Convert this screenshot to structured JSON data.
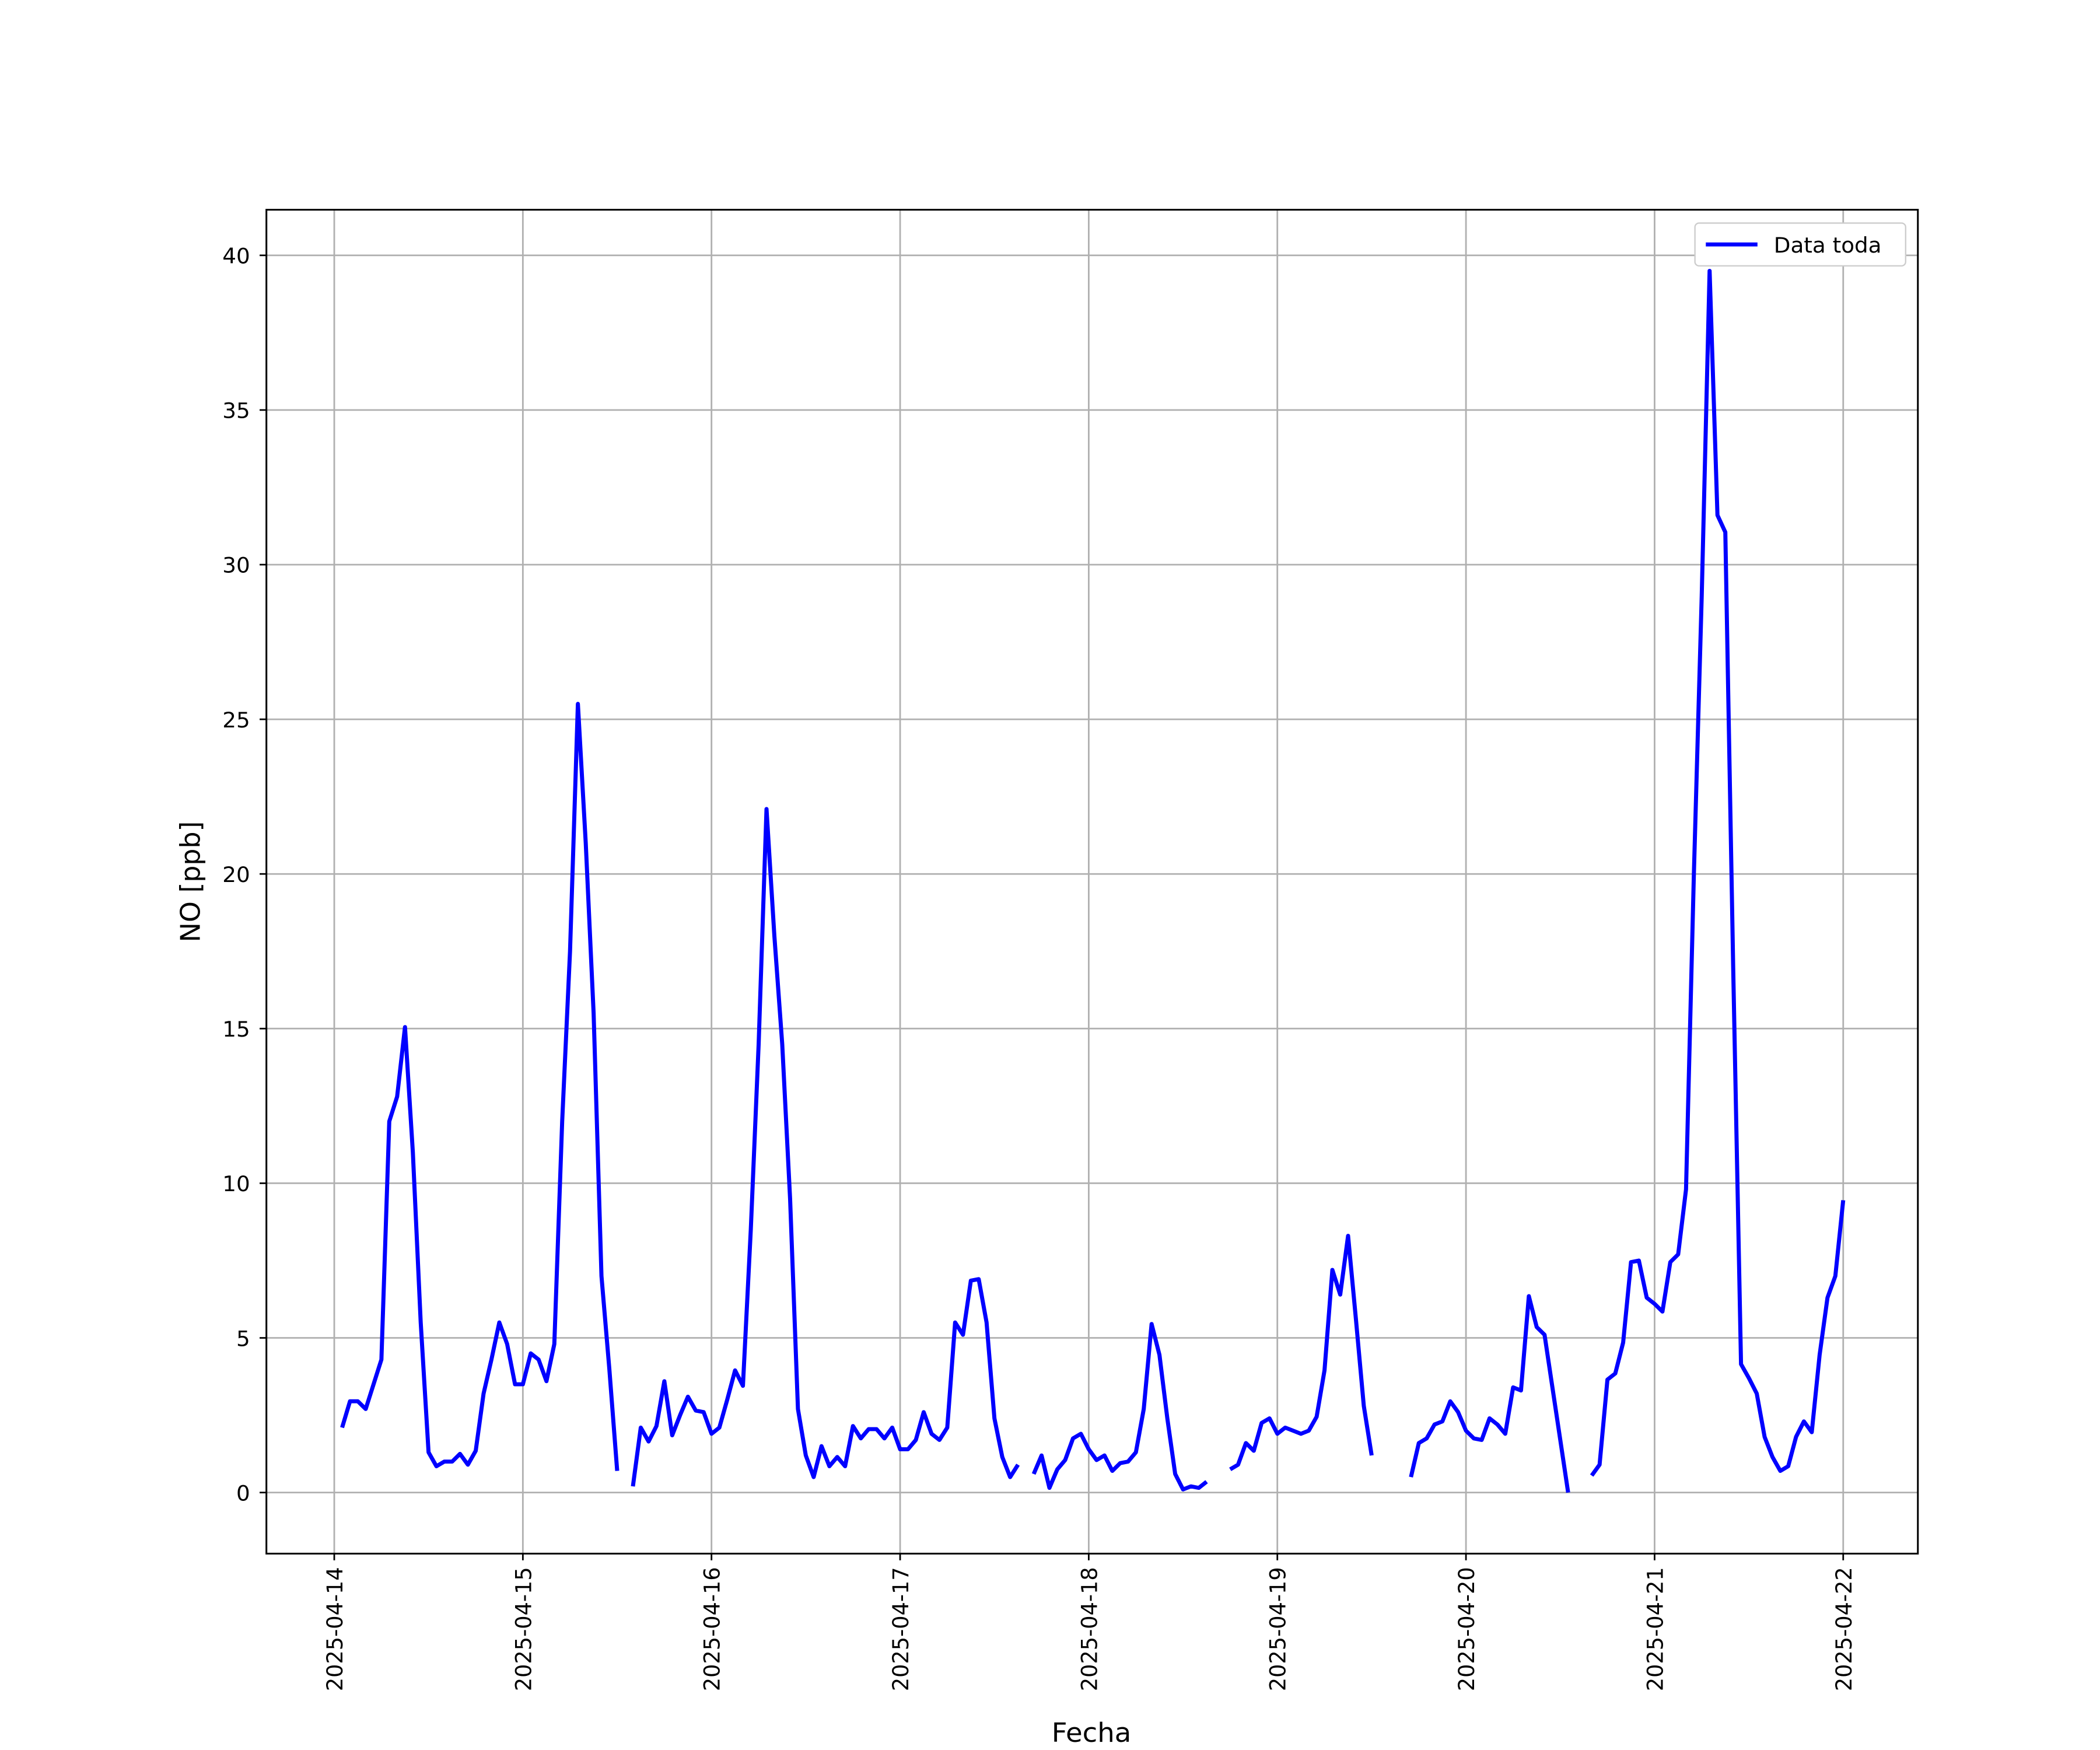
{
  "chart_data": {
    "type": "line",
    "xlabel": "Fecha",
    "ylabel": "NO [ppb]",
    "x": [
      "2025-04-14 01:00",
      "2025-04-14 02:00",
      "2025-04-14 03:00",
      "2025-04-14 04:00",
      "2025-04-14 05:00",
      "2025-04-14 06:00",
      "2025-04-14 07:00",
      "2025-04-14 08:00",
      "2025-04-14 09:00",
      "2025-04-14 10:00",
      "2025-04-14 11:00",
      "2025-04-14 12:00",
      "2025-04-14 13:00",
      "2025-04-14 14:00",
      "2025-04-14 15:00",
      "2025-04-14 16:00",
      "2025-04-14 17:00",
      "2025-04-14 18:00",
      "2025-04-14 19:00",
      "2025-04-14 20:00",
      "2025-04-14 21:00",
      "2025-04-14 22:00",
      "2025-04-14 23:00",
      "2025-04-15 00:00",
      "2025-04-15 01:00",
      "2025-04-15 02:00",
      "2025-04-15 03:00",
      "2025-04-15 04:00",
      "2025-04-15 05:00",
      "2025-04-15 06:00",
      "2025-04-15 07:00",
      "2025-04-15 08:00",
      "2025-04-15 09:00",
      "2025-04-15 10:00",
      "2025-04-15 11:00",
      "2025-04-15 12:00",
      "2025-04-15 13:00",
      "2025-04-15 14:00",
      "2025-04-15 15:00",
      "2025-04-15 16:00",
      "2025-04-15 17:00",
      "2025-04-15 18:00",
      "2025-04-15 19:00",
      "2025-04-15 20:00",
      "2025-04-15 21:00",
      "2025-04-15 22:00",
      "2025-04-15 23:00",
      "2025-04-16 00:00",
      "2025-04-16 01:00",
      "2025-04-16 02:00",
      "2025-04-16 03:00",
      "2025-04-16 04:00",
      "2025-04-16 05:00",
      "2025-04-16 06:00",
      "2025-04-16 07:00",
      "2025-04-16 08:00",
      "2025-04-16 09:00",
      "2025-04-16 10:00",
      "2025-04-16 11:00",
      "2025-04-16 12:00",
      "2025-04-16 13:00",
      "2025-04-16 14:00",
      "2025-04-16 15:00",
      "2025-04-16 16:00",
      "2025-04-16 17:00",
      "2025-04-16 18:00",
      "2025-04-16 19:00",
      "2025-04-16 20:00",
      "2025-04-16 21:00",
      "2025-04-16 22:00",
      "2025-04-16 23:00",
      "2025-04-17 00:00",
      "2025-04-17 01:00",
      "2025-04-17 02:00",
      "2025-04-17 03:00",
      "2025-04-17 04:00",
      "2025-04-17 05:00",
      "2025-04-17 06:00",
      "2025-04-17 07:00",
      "2025-04-17 08:00",
      "2025-04-17 09:00",
      "2025-04-17 10:00",
      "2025-04-17 11:00",
      "2025-04-17 12:00",
      "2025-04-17 13:00",
      "2025-04-17 14:00",
      "2025-04-17 15:00",
      "2025-04-17 16:00",
      "2025-04-17 17:00",
      "2025-04-17 18:00",
      "2025-04-17 19:00",
      "2025-04-17 20:00",
      "2025-04-17 21:00",
      "2025-04-17 22:00",
      "2025-04-17 23:00",
      "2025-04-18 00:00",
      "2025-04-18 01:00",
      "2025-04-18 02:00",
      "2025-04-18 03:00",
      "2025-04-18 04:00",
      "2025-04-18 05:00",
      "2025-04-18 06:00",
      "2025-04-18 07:00",
      "2025-04-18 08:00",
      "2025-04-18 09:00",
      "2025-04-18 10:00",
      "2025-04-18 11:00",
      "2025-04-18 12:00",
      "2025-04-18 13:00",
      "2025-04-18 14:00",
      "2025-04-18 15:00",
      "2025-04-18 16:00",
      "2025-04-18 17:00",
      "2025-04-18 18:00",
      "2025-04-18 19:00",
      "2025-04-18 20:00",
      "2025-04-18 21:00",
      "2025-04-18 22:00",
      "2025-04-18 23:00",
      "2025-04-19 00:00",
      "2025-04-19 01:00",
      "2025-04-19 02:00",
      "2025-04-19 03:00",
      "2025-04-19 04:00",
      "2025-04-19 05:00",
      "2025-04-19 06:00",
      "2025-04-19 07:00",
      "2025-04-19 08:00",
      "2025-04-19 09:00",
      "2025-04-19 10:00",
      "2025-04-19 11:00",
      "2025-04-19 12:00",
      "2025-04-19 13:00",
      "2025-04-19 14:00",
      "2025-04-19 15:00",
      "2025-04-19 16:00",
      "2025-04-19 17:00",
      "2025-04-19 18:00",
      "2025-04-19 19:00",
      "2025-04-19 20:00",
      "2025-04-19 21:00",
      "2025-04-19 22:00",
      "2025-04-19 23:00",
      "2025-04-20 00:00",
      "2025-04-20 01:00",
      "2025-04-20 02:00",
      "2025-04-20 03:00",
      "2025-04-20 04:00",
      "2025-04-20 05:00",
      "2025-04-20 06:00",
      "2025-04-20 07:00",
      "2025-04-20 08:00",
      "2025-04-20 09:00",
      "2025-04-20 10:00",
      "2025-04-20 11:00",
      "2025-04-20 12:00",
      "2025-04-20 13:00",
      "2025-04-20 14:00",
      "2025-04-20 15:00",
      "2025-04-20 16:00",
      "2025-04-20 17:00",
      "2025-04-20 18:00",
      "2025-04-20 19:00",
      "2025-04-20 20:00",
      "2025-04-20 21:00",
      "2025-04-20 22:00",
      "2025-04-20 23:00",
      "2025-04-21 00:00",
      "2025-04-21 01:00",
      "2025-04-21 02:00",
      "2025-04-21 03:00",
      "2025-04-21 04:00",
      "2025-04-21 05:00",
      "2025-04-21 06:00",
      "2025-04-21 07:00",
      "2025-04-21 08:00",
      "2025-04-21 09:00",
      "2025-04-21 10:00",
      "2025-04-21 11:00",
      "2025-04-21 12:00",
      "2025-04-21 13:00",
      "2025-04-21 14:00",
      "2025-04-21 15:00",
      "2025-04-21 16:00",
      "2025-04-21 17:00",
      "2025-04-21 18:00",
      "2025-04-21 19:00",
      "2025-04-21 20:00",
      "2025-04-21 21:00",
      "2025-04-21 22:00",
      "2025-04-21 23:00",
      "2025-04-22 00:00"
    ],
    "series": [
      {
        "name": "Data toda",
        "color": "#0000ff",
        "values": [
          2.1,
          2.95,
          2.95,
          2.7,
          3.5,
          4.3,
          12.0,
          12.8,
          15.05,
          11.0,
          5.5,
          1.3,
          0.85,
          1.0,
          1.0,
          1.25,
          0.9,
          1.35,
          3.2,
          4.3,
          5.5,
          4.8,
          3.5,
          3.5,
          4.5,
          4.3,
          3.6,
          4.8,
          12.0,
          17.5,
          25.5,
          21.0,
          15.5,
          7.0,
          4.0,
          0.7,
          null,
          0.2,
          2.1,
          1.65,
          2.15,
          3.6,
          1.85,
          2.5,
          3.1,
          2.65,
          2.6,
          1.9,
          2.1,
          3.0,
          3.95,
          3.45,
          8.5,
          14.5,
          22.1,
          18.0,
          14.5,
          9.5,
          2.7,
          1.2,
          0.5,
          1.5,
          0.85,
          1.15,
          0.85,
          2.15,
          1.75,
          2.05,
          2.05,
          1.75,
          2.1,
          1.4,
          1.4,
          1.7,
          2.6,
          1.9,
          1.7,
          2.1,
          5.5,
          5.1,
          6.85,
          6.9,
          5.5,
          2.4,
          1.15,
          0.5,
          0.9,
          null,
          0.6,
          1.2,
          0.15,
          0.75,
          1.05,
          1.75,
          1.9,
          1.4,
          1.05,
          1.2,
          0.7,
          0.95,
          1.0,
          1.3,
          2.7,
          5.45,
          4.45,
          2.4,
          0.6,
          0.1,
          0.2,
          0.15,
          0.35,
          null,
          null,
          0.75,
          0.9,
          1.6,
          1.35,
          2.25,
          2.4,
          1.9,
          2.1,
          2.0,
          1.9,
          2.0,
          2.45,
          3.95,
          7.2,
          6.4,
          8.3,
          5.6,
          2.8,
          1.2,
          null,
          null,
          null,
          null,
          0.5,
          1.6,
          1.75,
          2.2,
          2.3,
          2.95,
          2.6,
          2.0,
          1.75,
          1.7,
          2.4,
          2.2,
          1.9,
          3.4,
          3.3,
          6.35,
          5.35,
          5.1,
          3.4,
          1.7,
          0.0,
          null,
          null,
          0.55,
          0.9,
          3.65,
          3.85,
          4.85,
          7.45,
          7.5,
          6.3,
          6.1,
          5.85,
          7.45,
          7.7,
          9.8,
          20.0,
          29.0,
          39.5,
          31.6,
          31.05,
          17.0,
          4.15,
          3.7,
          3.2,
          1.8,
          1.15,
          0.7,
          0.85,
          1.8,
          2.3,
          1.95,
          4.45,
          6.3,
          7.0,
          9.45
        ]
      }
    ],
    "xlim": [
      "2025-04-13 15:22",
      "2025-04-22 09:30"
    ],
    "xticks": [
      "2025-04-14",
      "2025-04-15",
      "2025-04-16",
      "2025-04-17",
      "2025-04-18",
      "2025-04-19",
      "2025-04-20",
      "2025-04-21",
      "2025-04-22"
    ],
    "ylim": [
      -1.975,
      41.475
    ],
    "yticks": [
      0,
      5,
      10,
      15,
      20,
      25,
      30,
      35,
      40
    ],
    "grid": true,
    "legend": "upper right"
  }
}
